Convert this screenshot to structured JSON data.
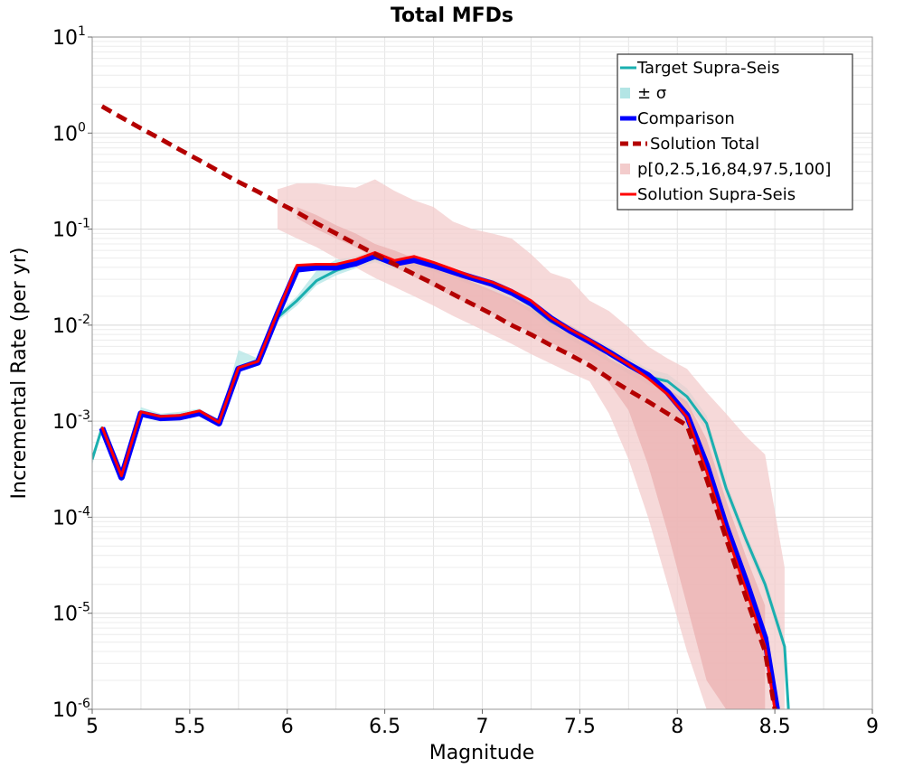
{
  "chart_data": {
    "type": "line",
    "title": "Total MFDs",
    "xlabel": "Magnitude",
    "ylabel": "Incremental Rate (per yr)",
    "xlim": [
      5,
      9
    ],
    "ylim": [
      1e-06,
      10
    ],
    "yscale": "log",
    "grid": true,
    "legend_position": "top-right",
    "x_ticks": [
      "5",
      "5.5",
      "6",
      "6.5",
      "7",
      "7.5",
      "8",
      "8.5",
      "9"
    ],
    "y_ticks": [
      {
        "base": "10",
        "exp": "-6"
      },
      {
        "base": "10",
        "exp": "-5"
      },
      {
        "base": "10",
        "exp": "-4"
      },
      {
        "base": "10",
        "exp": "-3"
      },
      {
        "base": "10",
        "exp": "-2"
      },
      {
        "base": "10",
        "exp": "-1"
      },
      {
        "base": "10",
        "exp": "0"
      },
      {
        "base": "10",
        "exp": "1"
      }
    ],
    "legend": [
      {
        "label": "Target Supra-Seis",
        "kind": "line",
        "color": "#1aafaf"
      },
      {
        "label": "± σ",
        "kind": "band",
        "color": "#b3e5e5"
      },
      {
        "label": "Comparison",
        "kind": "thick",
        "color": "#0000ff"
      },
      {
        "label": "Solution Total",
        "kind": "dash",
        "color": "#b40000"
      },
      {
        "label": "p[0,2.5,16,84,97.5,100]",
        "kind": "band",
        "color": "#f3cccc"
      },
      {
        "label": "Solution Supra-Seis",
        "kind": "line",
        "color": "#ff0000"
      }
    ],
    "series": [
      {
        "name": "Target Supra-Seis",
        "color": "#1aafaf",
        "x": [
          5.0,
          5.05,
          5.15,
          5.25,
          5.35,
          5.45,
          5.55,
          5.65,
          5.75,
          5.85,
          5.95,
          6.05,
          6.15,
          6.25,
          6.35,
          6.45,
          6.55,
          6.65,
          6.75,
          6.85,
          6.95,
          7.05,
          7.15,
          7.25,
          7.35,
          7.45,
          7.55,
          7.65,
          7.75,
          7.85,
          7.95,
          8.05,
          8.15,
          8.25,
          8.35,
          8.45,
          8.55,
          8.57
        ],
        "y": [
          0.0004,
          0.00085,
          0.00025,
          0.00125,
          0.0011,
          0.00115,
          0.00125,
          0.00095,
          0.0035,
          0.0041,
          0.012,
          0.018,
          0.029,
          0.037,
          0.043,
          0.05,
          0.043,
          0.046,
          0.041,
          0.035,
          0.03,
          0.026,
          0.021,
          0.016,
          0.011,
          0.0085,
          0.0065,
          0.005,
          0.0038,
          0.0029,
          0.0026,
          0.0018,
          0.00095,
          0.0002,
          6e-05,
          2e-05,
          4.5e-06,
          1e-06
        ]
      },
      {
        "name": "Comparison",
        "color": "#0000ff",
        "x": [
          5.05,
          5.15,
          5.25,
          5.35,
          5.45,
          5.55,
          5.65,
          5.75,
          5.85,
          5.95,
          6.05,
          6.15,
          6.25,
          6.35,
          6.45,
          6.55,
          6.65,
          6.75,
          6.85,
          6.95,
          7.05,
          7.15,
          7.25,
          7.35,
          7.45,
          7.55,
          7.65,
          7.75,
          7.85,
          7.95,
          8.05,
          8.15,
          8.25,
          8.35,
          8.45,
          8.51
        ],
        "y": [
          0.00085,
          0.00026,
          0.0012,
          0.00108,
          0.0011,
          0.00122,
          0.00095,
          0.0035,
          0.0041,
          0.013,
          0.038,
          0.04,
          0.04,
          0.044,
          0.053,
          0.044,
          0.048,
          0.042,
          0.036,
          0.031,
          0.027,
          0.022,
          0.017,
          0.0118,
          0.0088,
          0.0068,
          0.0052,
          0.0039,
          0.003,
          0.002,
          0.00115,
          0.00035,
          8e-05,
          2.2e-05,
          5.5e-06,
          1e-06
        ]
      },
      {
        "name": "Solution Supra-Seis",
        "color": "#ff0000",
        "x": [
          5.05,
          5.15,
          5.25,
          5.35,
          5.45,
          5.55,
          5.65,
          5.75,
          5.85,
          5.95,
          6.05,
          6.15,
          6.25,
          6.35,
          6.45,
          6.55,
          6.65,
          6.75,
          6.85,
          6.95,
          7.05,
          7.15,
          7.25,
          7.35,
          7.45,
          7.55,
          7.65,
          7.75,
          7.85,
          7.95,
          8.05,
          8.15,
          8.25,
          8.35,
          8.45,
          8.5
        ],
        "y": [
          0.00087,
          0.00027,
          0.00125,
          0.00112,
          0.00115,
          0.00128,
          0.00097,
          0.0036,
          0.0042,
          0.0135,
          0.042,
          0.043,
          0.043,
          0.048,
          0.057,
          0.047,
          0.052,
          0.045,
          0.038,
          0.032,
          0.028,
          0.023,
          0.018,
          0.012,
          0.009,
          0.007,
          0.0052,
          0.0039,
          0.0028,
          0.0019,
          0.0011,
          0.0003,
          7e-05,
          1.8e-05,
          4.5e-06,
          1e-06
        ]
      },
      {
        "name": "Solution Total",
        "color": "#b40000",
        "dashed": true,
        "x": [
          5.05,
          5.15,
          5.25,
          5.35,
          5.45,
          5.55,
          5.65,
          5.75,
          5.85,
          5.95,
          6.05,
          6.15,
          6.25,
          6.35,
          6.45,
          6.55,
          6.65,
          6.75,
          6.85,
          6.95,
          7.05,
          7.15,
          7.25,
          7.35,
          7.45,
          7.55,
          7.65,
          7.75,
          7.85,
          7.95,
          8.05,
          8.15,
          8.25,
          8.35,
          8.45,
          8.5
        ],
        "y": [
          1.9,
          1.45,
          1.12,
          0.87,
          0.67,
          0.52,
          0.4,
          0.31,
          0.245,
          0.19,
          0.15,
          0.115,
          0.09,
          0.07,
          0.055,
          0.043,
          0.034,
          0.027,
          0.021,
          0.0165,
          0.013,
          0.01,
          0.008,
          0.0062,
          0.0049,
          0.0038,
          0.0028,
          0.0021,
          0.0016,
          0.0012,
          0.0009,
          0.00025,
          6e-05,
          1.5e-05,
          4e-06,
          1e-06
        ]
      }
    ],
    "bands": [
      {
        "name": "± σ",
        "color": "#b3e5e5",
        "x": [
          5.0,
          5.05,
          5.15,
          5.25,
          5.35,
          5.45,
          5.55,
          5.65,
          5.75,
          5.85,
          5.95,
          6.05,
          6.15,
          6.25,
          6.35,
          6.45,
          6.55,
          6.65,
          6.75,
          6.85,
          6.95,
          7.05,
          7.15,
          7.25,
          7.35,
          7.45,
          7.55,
          7.65,
          7.75,
          7.85,
          7.95,
          8.05,
          8.15,
          8.25,
          8.35,
          8.45,
          8.55
        ],
        "lower": [
          0.00035,
          0.0008,
          0.00023,
          0.0011,
          0.001,
          0.00105,
          0.00115,
          0.0009,
          0.0033,
          0.0039,
          0.011,
          0.016,
          0.026,
          0.033,
          0.039,
          0.045,
          0.038,
          0.041,
          0.036,
          0.031,
          0.026,
          0.022,
          0.018,
          0.0135,
          0.0093,
          0.0071,
          0.0055,
          0.0041,
          0.0031,
          0.0024,
          0.0021,
          0.0015,
          0.0008,
          0.00017,
          5e-05,
          1.7e-05,
          3.8e-06
        ],
        "upper": [
          0.00045,
          0.0009,
          0.00027,
          0.0014,
          0.0012,
          0.00125,
          0.00135,
          0.001,
          0.0055,
          0.0045,
          0.013,
          0.02,
          0.037,
          0.048,
          0.052,
          0.061,
          0.05,
          0.052,
          0.046,
          0.039,
          0.034,
          0.03,
          0.024,
          0.019,
          0.013,
          0.01,
          0.0077,
          0.006,
          0.0046,
          0.0035,
          0.0031,
          0.0022,
          0.00115,
          0.00024,
          7e-05,
          2.4e-05,
          5.5e-06
        ]
      },
      {
        "name": "p[0,2.5,16,84,97.5,100] outer",
        "color": "#f3cccc",
        "x": [
          5.95,
          6.05,
          6.15,
          6.25,
          6.35,
          6.45,
          6.55,
          6.65,
          6.75,
          6.85,
          6.95,
          7.05,
          7.15,
          7.25,
          7.35,
          7.45,
          7.55,
          7.65,
          7.75,
          7.85,
          7.95,
          8.05,
          8.15,
          8.25,
          8.35,
          8.45,
          8.55
        ],
        "lower": [
          0.1,
          0.08,
          0.065,
          0.05,
          0.04,
          0.031,
          0.025,
          0.02,
          0.016,
          0.0125,
          0.01,
          0.008,
          0.0064,
          0.005,
          0.004,
          0.0032,
          0.0026,
          0.0012,
          0.0004,
          0.0001,
          2e-05,
          4e-06,
          1e-06,
          1e-06,
          1e-06,
          1e-06,
          1e-06
        ],
        "upper": [
          0.26,
          0.3,
          0.3,
          0.28,
          0.27,
          0.33,
          0.25,
          0.2,
          0.17,
          0.12,
          0.1,
          0.09,
          0.08,
          0.055,
          0.035,
          0.03,
          0.018,
          0.014,
          0.0095,
          0.006,
          0.0045,
          0.0035,
          0.002,
          0.0012,
          0.0007,
          0.00045,
          3e-05
        ]
      },
      {
        "name": "p[0,2.5,16,84,97.5,100] inner",
        "color": "#ebb0b0",
        "x": [
          6.05,
          6.15,
          6.25,
          6.35,
          6.45,
          6.55,
          6.65,
          6.75,
          6.85,
          6.95,
          7.05,
          7.15,
          7.25,
          7.35,
          7.45,
          7.55,
          7.65,
          7.75,
          7.85,
          7.95,
          8.05,
          8.15,
          8.25,
          8.35,
          8.45
        ],
        "lower": [
          0.13,
          0.1,
          0.08,
          0.065,
          0.05,
          0.04,
          0.032,
          0.025,
          0.02,
          0.016,
          0.013,
          0.0105,
          0.0083,
          0.0066,
          0.0052,
          0.0041,
          0.0025,
          0.0013,
          0.00035,
          7e-05,
          1.2e-05,
          2e-06,
          1e-06,
          1e-06,
          1e-06
        ],
        "upper": [
          0.17,
          0.14,
          0.11,
          0.09,
          0.07,
          0.06,
          0.05,
          0.042,
          0.035,
          0.028,
          0.023,
          0.019,
          0.015,
          0.012,
          0.01,
          0.0075,
          0.0045,
          0.0035,
          0.0028,
          0.0022,
          0.0016,
          0.00065,
          0.00015,
          4e-05,
          1.2e-05
        ]
      }
    ]
  }
}
